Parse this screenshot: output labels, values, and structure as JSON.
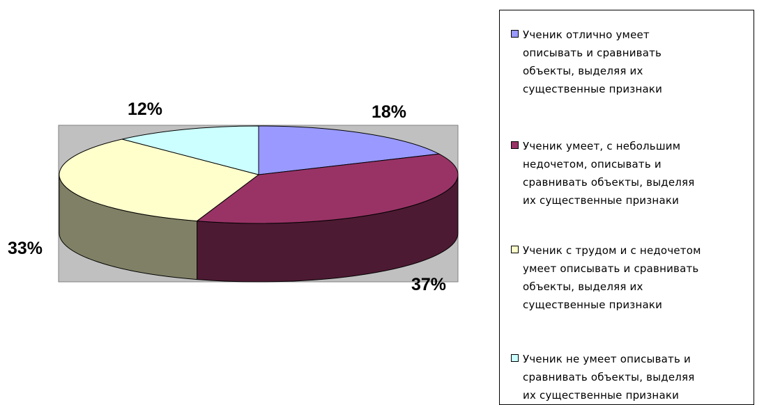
{
  "chart_data": {
    "type": "pie",
    "style": "3d",
    "slices": [
      {
        "label": "Ученик  отлично умеет\nописывать и сравнивать\nобъекты, выделяя их\nсущественные признаки",
        "value": 18,
        "display": "18%",
        "color": "#9999ff"
      },
      {
        "label": "Ученик  умеет,  с небольшим\nнедочетом, описывать и\nсравнивать объекты, выделяя\nих существенные признаки",
        "value": 37,
        "display": "37%",
        "color": "#993366"
      },
      {
        "label": "Ученик  с трудом и с недочетом\nумеет  описывать и сравнивать\nобъекты, выделяя их\nсущественные признаки",
        "value": 33,
        "display": "33%",
        "color": "#ffffcc"
      },
      {
        "label": "Ученик  не  умеет  описывать и\nсравнивать объекты, выделяя\nих существенные признаки",
        "value": 12,
        "display": "12%",
        "color": "#ccffff"
      }
    ],
    "legend_position": "right",
    "plot_area_background": "#c0c0c0"
  }
}
